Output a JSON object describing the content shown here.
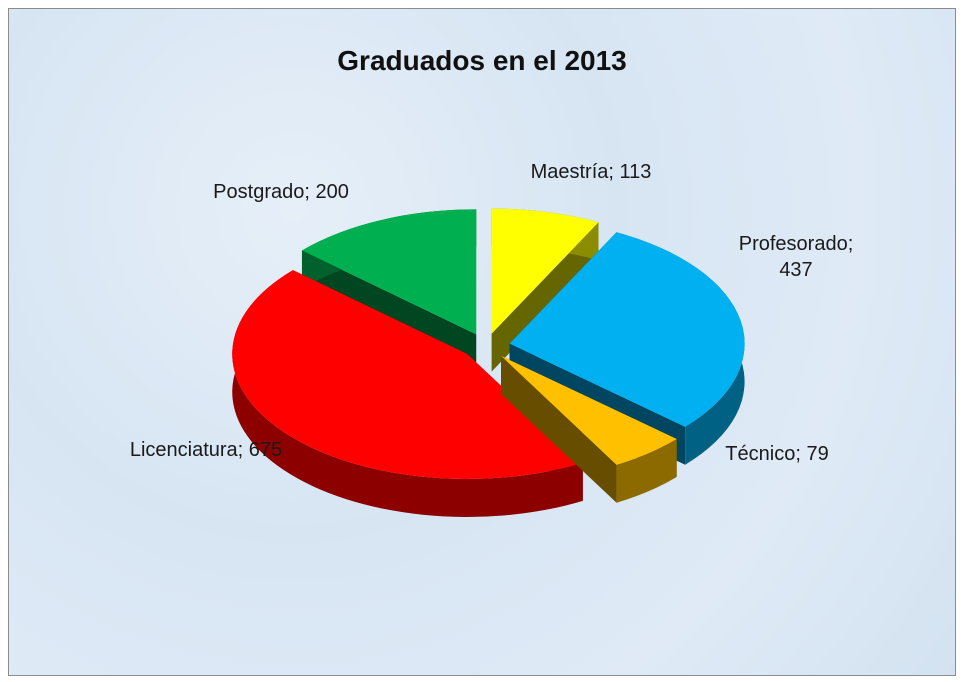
{
  "chart_data": {
    "type": "pie3d",
    "title": "Graduados en el 2013",
    "values": [
      113,
      437,
      79,
      675,
      200
    ],
    "value_labels": [
      "Maestría; 113",
      "Profesorado; 437",
      "Técnico; 79",
      "Licenciatura; 675",
      "Postgrado; 200"
    ],
    "colors": [
      "#ffff00",
      "#00b0f0",
      "#ffc000",
      "#ff0000",
      "#00b050"
    ]
  }
}
